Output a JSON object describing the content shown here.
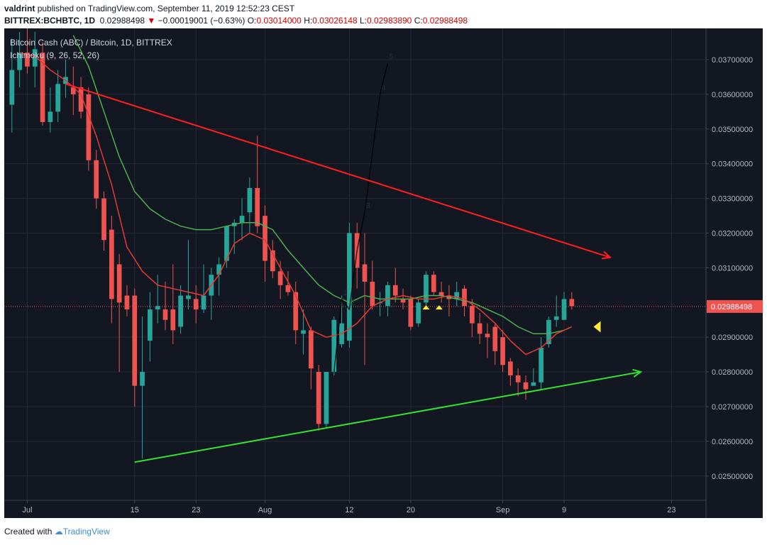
{
  "header": {
    "user": "valdrint",
    "published": "published on TradingView.com, September 11, 2019 12:52:23 CEST",
    "symbol": "BITTREX:BCHBTC, 1D",
    "last": "0.02988498",
    "arrow": "▼",
    "change": "−0.00019001 (−0.63%)",
    "o_label": "O:",
    "o": "0.03014000",
    "h_label": "H:",
    "h": "0.03026148",
    "l_label": "L:",
    "l": "0.02983890",
    "c_label": "C:",
    "c": "0.02988498"
  },
  "legend": {
    "title": "Bitcoin Cash (ABC) / Bitcoin, 1D, BITTREX",
    "indicator": "Ichimoku (9, 26, 52, 26)"
  },
  "footer": {
    "created": "Created with",
    "brand": "TradingView"
  },
  "colors": {
    "background": "#131722",
    "bull": "#26a69a",
    "bear": "#ef5350",
    "trend_upper": "#ff1e1e",
    "trend_lower": "#33e033",
    "kijun": "#4caf50",
    "tenkan": "#e53935",
    "marker": "#ffeb3b"
  },
  "chart_data": {
    "type": "candlestick",
    "y_ticks": [
      "0.03700000",
      "0.03600000",
      "0.03500000",
      "0.03400000",
      "0.03300000",
      "0.03200000",
      "0.03100000",
      "0.02988498",
      "0.02900000",
      "0.02800000",
      "0.02700000",
      "0.02600000",
      "0.02500000"
    ],
    "y_tick_values": [
      0.037,
      0.036,
      0.035,
      0.034,
      0.033,
      0.032,
      0.031,
      0.02988498,
      0.029,
      0.028,
      0.027,
      0.026,
      0.025
    ],
    "ylim": [
      0.0243,
      0.0379
    ],
    "last_price": 0.02988498,
    "x_ticks": [
      {
        "label": "Jul",
        "day": 0
      },
      {
        "label": "15",
        "day": 14
      },
      {
        "label": "23",
        "day": 22
      },
      {
        "label": "Aug",
        "day": 31
      },
      {
        "label": "12",
        "day": 42
      },
      {
        "label": "20",
        "day": 50
      },
      {
        "label": "Sep",
        "day": 62
      },
      {
        "label": "9",
        "day": 70
      },
      {
        "label": "23",
        "day": 84
      }
    ],
    "xlim_days": [
      -3,
      88.5
    ],
    "candles": [
      {
        "d": -2,
        "o": 0.0357,
        "h": 0.0376,
        "l": 0.0349,
        "c": 0.0367
      },
      {
        "d": -1,
        "o": 0.0367,
        "h": 0.0378,
        "l": 0.0362,
        "c": 0.0372
      },
      {
        "d": 0,
        "o": 0.0372,
        "h": 0.038,
        "l": 0.0366,
        "c": 0.0368
      },
      {
        "d": 1,
        "o": 0.0368,
        "h": 0.0378,
        "l": 0.0362,
        "c": 0.0373
      },
      {
        "d": 2,
        "o": 0.0372,
        "h": 0.0375,
        "l": 0.0351,
        "c": 0.0352
      },
      {
        "d": 3,
        "o": 0.0352,
        "h": 0.0362,
        "l": 0.0349,
        "c": 0.0355
      },
      {
        "d": 4,
        "o": 0.0355,
        "h": 0.0367,
        "l": 0.0352,
        "c": 0.0363
      },
      {
        "d": 5,
        "o": 0.0363,
        "h": 0.037,
        "l": 0.0359,
        "c": 0.0365
      },
      {
        "d": 6,
        "o": 0.0362,
        "h": 0.0368,
        "l": 0.0354,
        "c": 0.036
      },
      {
        "d": 7,
        "o": 0.0362,
        "h": 0.0365,
        "l": 0.0353,
        "c": 0.0355
      },
      {
        "d": 8,
        "o": 0.036,
        "h": 0.0362,
        "l": 0.0338,
        "c": 0.0341
      },
      {
        "d": 9,
        "o": 0.0341,
        "h": 0.0344,
        "l": 0.0327,
        "c": 0.033
      },
      {
        "d": 10,
        "o": 0.033,
        "h": 0.0332,
        "l": 0.0315,
        "c": 0.0318
      },
      {
        "d": 11,
        "o": 0.0321,
        "h": 0.0325,
        "l": 0.0294,
        "c": 0.0301
      },
      {
        "d": 12,
        "o": 0.0311,
        "h": 0.0314,
        "l": 0.028,
        "c": 0.03
      },
      {
        "d": 13,
        "o": 0.0302,
        "h": 0.0305,
        "l": 0.0296,
        "c": 0.0298
      },
      {
        "d": 14,
        "o": 0.0302,
        "h": 0.0304,
        "l": 0.027,
        "c": 0.0276
      },
      {
        "d": 15,
        "o": 0.0276,
        "h": 0.0296,
        "l": 0.0255,
        "c": 0.028
      },
      {
        "d": 16,
        "o": 0.0289,
        "h": 0.0303,
        "l": 0.0283,
        "c": 0.0298
      },
      {
        "d": 17,
        "o": 0.0298,
        "h": 0.0308,
        "l": 0.0294,
        "c": 0.0299
      },
      {
        "d": 18,
        "o": 0.0298,
        "h": 0.0306,
        "l": 0.0292,
        "c": 0.0295
      },
      {
        "d": 19,
        "o": 0.0298,
        "h": 0.0311,
        "l": 0.0288,
        "c": 0.0292
      },
      {
        "d": 20,
        "o": 0.0293,
        "h": 0.0305,
        "l": 0.0291,
        "c": 0.0302
      },
      {
        "d": 21,
        "o": 0.0301,
        "h": 0.0318,
        "l": 0.0298,
        "c": 0.0302
      },
      {
        "d": 22,
        "o": 0.0301,
        "h": 0.0305,
        "l": 0.0294,
        "c": 0.0298
      },
      {
        "d": 23,
        "o": 0.0298,
        "h": 0.0311,
        "l": 0.0297,
        "c": 0.0302
      },
      {
        "d": 24,
        "o": 0.0302,
        "h": 0.031,
        "l": 0.0295,
        "c": 0.0308
      },
      {
        "d": 25,
        "o": 0.0308,
        "h": 0.0313,
        "l": 0.0302,
        "c": 0.0311
      },
      {
        "d": 26,
        "o": 0.0312,
        "h": 0.0322,
        "l": 0.031,
        "c": 0.0322
      },
      {
        "d": 27,
        "o": 0.0322,
        "h": 0.0324,
        "l": 0.0314,
        "c": 0.0323
      },
      {
        "d": 28,
        "o": 0.0323,
        "h": 0.033,
        "l": 0.0318,
        "c": 0.0325
      },
      {
        "d": 29,
        "o": 0.0326,
        "h": 0.0336,
        "l": 0.032,
        "c": 0.0333
      },
      {
        "d": 30,
        "o": 0.0333,
        "h": 0.0348,
        "l": 0.032,
        "c": 0.0322
      },
      {
        "d": 31,
        "o": 0.0325,
        "h": 0.0328,
        "l": 0.0306,
        "c": 0.0312
      },
      {
        "d": 32,
        "o": 0.0315,
        "h": 0.0318,
        "l": 0.0307,
        "c": 0.0309
      },
      {
        "d": 33,
        "o": 0.0309,
        "h": 0.0312,
        "l": 0.0301,
        "c": 0.0305
      },
      {
        "d": 34,
        "o": 0.0305,
        "h": 0.0309,
        "l": 0.0302,
        "c": 0.0303
      },
      {
        "d": 35,
        "o": 0.0303,
        "h": 0.0306,
        "l": 0.0288,
        "c": 0.0292
      },
      {
        "d": 36,
        "o": 0.0291,
        "h": 0.0298,
        "l": 0.0285,
        "c": 0.0292
      },
      {
        "d": 37,
        "o": 0.0292,
        "h": 0.0293,
        "l": 0.0275,
        "c": 0.0281
      },
      {
        "d": 38,
        "o": 0.028,
        "h": 0.0282,
        "l": 0.0263,
        "c": 0.0265
      },
      {
        "d": 39,
        "o": 0.0265,
        "h": 0.028,
        "l": 0.0264,
        "c": 0.028
      },
      {
        "d": 40,
        "o": 0.028,
        "h": 0.0296,
        "l": 0.0279,
        "c": 0.0295
      },
      {
        "d": 41,
        "o": 0.0288,
        "h": 0.0302,
        "l": 0.0287,
        "c": 0.0294
      },
      {
        "d": 42,
        "o": 0.0289,
        "h": 0.0323,
        "l": 0.0287,
        "c": 0.032
      },
      {
        "d": 43,
        "o": 0.032,
        "h": 0.0323,
        "l": 0.0304,
        "c": 0.031
      },
      {
        "d": 44,
        "o": 0.0311,
        "h": 0.032,
        "l": 0.0282,
        "c": 0.0306
      },
      {
        "d": 45,
        "o": 0.0306,
        "h": 0.0312,
        "l": 0.0298,
        "c": 0.0299
      },
      {
        "d": 46,
        "o": 0.03,
        "h": 0.0303,
        "l": 0.0296,
        "c": 0.03
      },
      {
        "d": 47,
        "o": 0.0299,
        "h": 0.0306,
        "l": 0.0296,
        "c": 0.0305
      },
      {
        "d": 48,
        "o": 0.0305,
        "h": 0.031,
        "l": 0.03,
        "c": 0.0302
      },
      {
        "d": 49,
        "o": 0.0301,
        "h": 0.0304,
        "l": 0.0298,
        "c": 0.03
      },
      {
        "d": 50,
        "o": 0.0301,
        "h": 0.0302,
        "l": 0.0292,
        "c": 0.0293
      },
      {
        "d": 51,
        "o": 0.0294,
        "h": 0.0301,
        "l": 0.0293,
        "c": 0.03
      },
      {
        "d": 52,
        "o": 0.03,
        "h": 0.0309,
        "l": 0.0298,
        "c": 0.0308
      },
      {
        "d": 53,
        "o": 0.0308,
        "h": 0.0309,
        "l": 0.0302,
        "c": 0.0303
      },
      {
        "d": 54,
        "o": 0.0303,
        "h": 0.0306,
        "l": 0.03,
        "c": 0.0302
      },
      {
        "d": 55,
        "o": 0.0302,
        "h": 0.0305,
        "l": 0.0296,
        "c": 0.0301
      },
      {
        "d": 56,
        "o": 0.0301,
        "h": 0.0306,
        "l": 0.0299,
        "c": 0.0303
      },
      {
        "d": 57,
        "o": 0.0304,
        "h": 0.0305,
        "l": 0.0296,
        "c": 0.0299
      },
      {
        "d": 58,
        "o": 0.0299,
        "h": 0.0301,
        "l": 0.029,
        "c": 0.0294
      },
      {
        "d": 59,
        "o": 0.0294,
        "h": 0.0297,
        "l": 0.0288,
        "c": 0.0291
      },
      {
        "d": 60,
        "o": 0.0291,
        "h": 0.0294,
        "l": 0.0284,
        "c": 0.029
      },
      {
        "d": 61,
        "o": 0.0293,
        "h": 0.0294,
        "l": 0.0282,
        "c": 0.0286
      },
      {
        "d": 62,
        "o": 0.029,
        "h": 0.0292,
        "l": 0.028,
        "c": 0.0282
      },
      {
        "d": 63,
        "o": 0.0283,
        "h": 0.0284,
        "l": 0.0276,
        "c": 0.0279
      },
      {
        "d": 64,
        "o": 0.0279,
        "h": 0.0281,
        "l": 0.0273,
        "c": 0.0277
      },
      {
        "d": 65,
        "o": 0.0277,
        "h": 0.0279,
        "l": 0.0272,
        "c": 0.0275
      },
      {
        "d": 66,
        "o": 0.0276,
        "h": 0.0281,
        "l": 0.0276,
        "c": 0.0277
      },
      {
        "d": 67,
        "o": 0.0277,
        "h": 0.029,
        "l": 0.0275,
        "c": 0.0287
      },
      {
        "d": 68,
        "o": 0.0288,
        "h": 0.0296,
        "l": 0.0287,
        "c": 0.0295
      },
      {
        "d": 69,
        "o": 0.0295,
        "h": 0.0302,
        "l": 0.0293,
        "c": 0.0296
      },
      {
        "d": 70,
        "o": 0.0295,
        "h": 0.0303,
        "l": 0.0295,
        "c": 0.0301
      },
      {
        "d": 71,
        "o": 0.0301,
        "h": 0.0303,
        "l": 0.0298,
        "c": 0.0299
      }
    ],
    "tenkan": [
      [
        -1,
        0.0372
      ],
      [
        1,
        0.0371
      ],
      [
        3,
        0.0367
      ],
      [
        5,
        0.0364
      ],
      [
        7,
        0.036
      ],
      [
        9,
        0.0348
      ],
      [
        11,
        0.0334
      ],
      [
        13,
        0.0316
      ],
      [
        15,
        0.0309
      ],
      [
        17,
        0.0305
      ],
      [
        19,
        0.0304
      ],
      [
        21,
        0.0303
      ],
      [
        23,
        0.0302
      ],
      [
        25,
        0.0308
      ],
      [
        27,
        0.0317
      ],
      [
        29,
        0.032
      ],
      [
        31,
        0.0318
      ],
      [
        33,
        0.031
      ],
      [
        35,
        0.0302
      ],
      [
        37,
        0.0292
      ],
      [
        39,
        0.029
      ],
      [
        41,
        0.0291
      ],
      [
        43,
        0.0294
      ],
      [
        45,
        0.0299
      ],
      [
        47,
        0.0301
      ],
      [
        49,
        0.0302
      ],
      [
        51,
        0.0301
      ],
      [
        53,
        0.0301
      ],
      [
        55,
        0.0302
      ],
      [
        57,
        0.0301
      ],
      [
        59,
        0.0298
      ],
      [
        61,
        0.0294
      ],
      [
        63,
        0.0289
      ],
      [
        65,
        0.0285
      ],
      [
        67,
        0.0287
      ],
      [
        69,
        0.0291
      ],
      [
        71,
        0.0293
      ]
    ],
    "kijun": [
      [
        6,
        0.0377
      ],
      [
        8,
        0.0368
      ],
      [
        10,
        0.0355
      ],
      [
        12,
        0.0342
      ],
      [
        14,
        0.0332
      ],
      [
        16,
        0.0327
      ],
      [
        18,
        0.0324
      ],
      [
        20,
        0.0322
      ],
      [
        22,
        0.0321
      ],
      [
        24,
        0.0321
      ],
      [
        26,
        0.0322
      ],
      [
        28,
        0.0323
      ],
      [
        30,
        0.0323
      ],
      [
        32,
        0.0321
      ],
      [
        34,
        0.0315
      ],
      [
        36,
        0.031
      ],
      [
        38,
        0.0305
      ],
      [
        40,
        0.0302
      ],
      [
        42,
        0.03
      ],
      [
        44,
        0.0302
      ],
      [
        46,
        0.0301
      ],
      [
        48,
        0.0301
      ],
      [
        50,
        0.0301
      ],
      [
        52,
        0.0302
      ],
      [
        54,
        0.0302
      ],
      [
        56,
        0.0301
      ],
      [
        58,
        0.03
      ],
      [
        60,
        0.0298
      ],
      [
        62,
        0.0296
      ],
      [
        64,
        0.0293
      ],
      [
        66,
        0.0291
      ],
      [
        68,
        0.0291
      ],
      [
        70,
        0.0292
      ],
      [
        71,
        0.0293
      ]
    ],
    "wave": {
      "labels": [
        "1",
        "2",
        "3",
        "4",
        "5"
      ],
      "points": [
        [
          40,
          0.028
        ],
        [
          41,
          0.0301
        ],
        [
          42,
          0.0298
        ],
        [
          43,
          0.0315
        ],
        [
          44,
          0.0326
        ],
        [
          46,
          0.036
        ],
        [
          47,
          0.0369
        ]
      ]
    },
    "trendlines": [
      {
        "name": "upper",
        "from": [
          5,
          0.0363
        ],
        "to": [
          76,
          0.0313
        ],
        "color": "#ff1e1e"
      },
      {
        "name": "lower",
        "from": [
          14,
          0.0254
        ],
        "to": [
          80,
          0.028
        ],
        "color": "#33e033"
      }
    ],
    "markers": [
      {
        "d": 52,
        "v": 0.02988
      },
      {
        "d": 53.7,
        "v": 0.02988
      }
    ],
    "current_marker": {
      "d": 74.3,
      "v": 0.0293
    },
    "grid": true
  }
}
